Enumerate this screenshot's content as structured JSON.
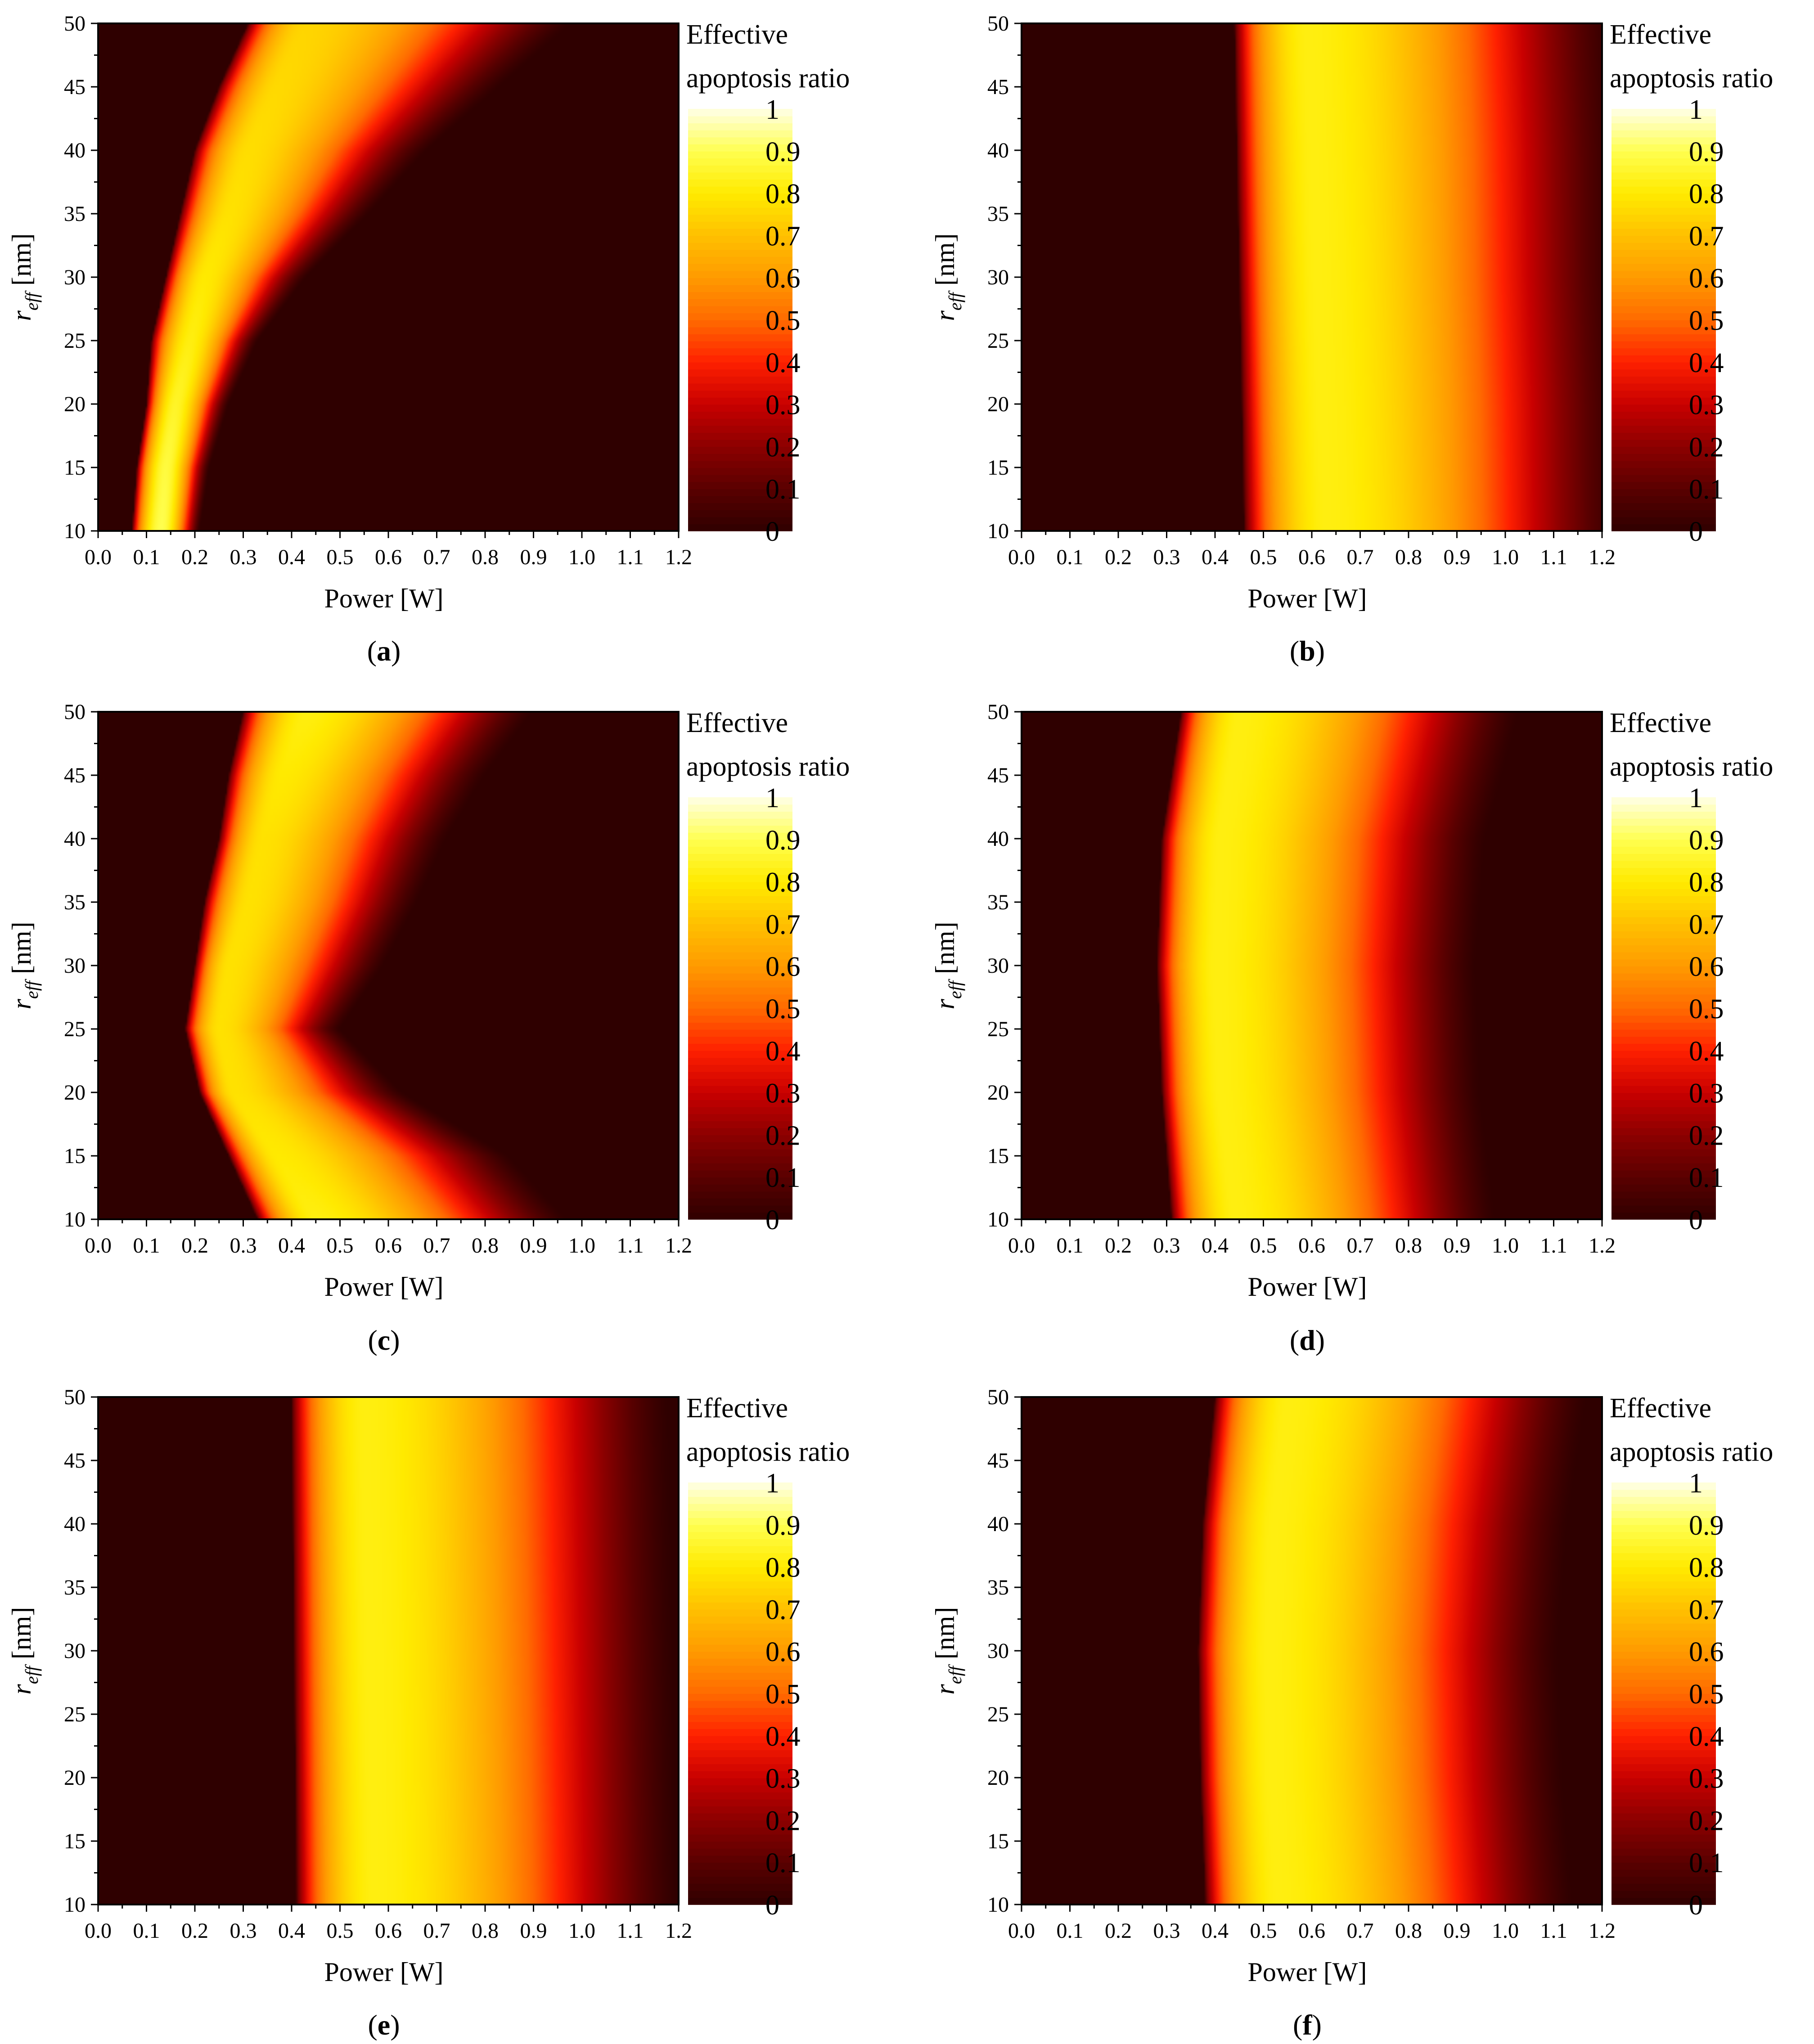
{
  "figure": {
    "colorbar_title_lines": [
      "Effective",
      "apoptosis ratio"
    ],
    "colorbar_ticks": [
      "0",
      "0.1",
      "0.2",
      "0.3",
      "0.4",
      "0.5",
      "0.6",
      "0.7",
      "0.8",
      "0.9",
      "1"
    ],
    "x_axis_title": "Power [W]",
    "y_axis_title_main": "r",
    "y_axis_title_sub": "eff",
    "y_axis_title_unit": " [nm]",
    "colormap": [
      "#2f0000",
      "#5a0000",
      "#8c0000",
      "#c80000",
      "#ff2000",
      "#ff6a00",
      "#ff9a00",
      "#ffc000",
      "#ffea00",
      "#ffff50",
      "#ffffe6"
    ]
  },
  "chart_data": [
    {
      "type": "heatmap",
      "panel": "a",
      "xlabel": "Power [W]",
      "ylabel": "r_eff [nm]",
      "colorbar_label": "Effective apoptosis ratio",
      "xlim": [
        0,
        1.2
      ],
      "ylim": [
        10,
        50
      ],
      "x_ticks": [
        "0.0",
        "0.1",
        "0.2",
        "0.3",
        "0.4",
        "0.5",
        "0.6",
        "0.7",
        "0.8",
        "0.9",
        "1.0",
        "1.1",
        "1.2"
      ],
      "y_ticks": [
        "10",
        "15",
        "20",
        "25",
        "30",
        "35",
        "40",
        "45",
        "50"
      ],
      "clim": [
        0,
        1
      ],
      "ridge": [
        {
          "r": 10,
          "center": 0.13,
          "left_edge": 0.07,
          "right_edge": 0.21,
          "peak": 0.9
        },
        {
          "r": 15,
          "center": 0.14,
          "left_edge": 0.08,
          "right_edge": 0.23,
          "peak": 0.88
        },
        {
          "r": 20,
          "center": 0.16,
          "left_edge": 0.1,
          "right_edge": 0.27,
          "peak": 0.85
        },
        {
          "r": 25,
          "center": 0.19,
          "left_edge": 0.11,
          "right_edge": 0.33,
          "peak": 0.82
        },
        {
          "r": 30,
          "center": 0.22,
          "left_edge": 0.14,
          "right_edge": 0.43,
          "peak": 0.8
        },
        {
          "r": 35,
          "center": 0.27,
          "left_edge": 0.17,
          "right_edge": 0.56,
          "peak": 0.78
        },
        {
          "r": 40,
          "center": 0.31,
          "left_edge": 0.2,
          "right_edge": 0.68,
          "peak": 0.77
        },
        {
          "r": 45,
          "center": 0.37,
          "left_edge": 0.25,
          "right_edge": 0.83,
          "peak": 0.76
        },
        {
          "r": 50,
          "center": 0.43,
          "left_edge": 0.31,
          "right_edge": 0.98,
          "peak": 0.75
        }
      ]
    },
    {
      "type": "heatmap",
      "panel": "b",
      "xlabel": "Power [W]",
      "ylabel": "r_eff [nm]",
      "colorbar_label": "Effective apoptosis ratio",
      "xlim": [
        0,
        1.2
      ],
      "ylim": [
        10,
        50
      ],
      "x_ticks": [
        "0.0",
        "0.1",
        "0.2",
        "0.3",
        "0.4",
        "0.5",
        "0.6",
        "0.7",
        "0.8",
        "0.9",
        "1.0",
        "1.1",
        "1.2"
      ],
      "y_ticks": [
        "10",
        "15",
        "20",
        "25",
        "30",
        "35",
        "40",
        "45",
        "50"
      ],
      "clim": [
        0,
        1
      ],
      "ridge": [
        {
          "r": 10,
          "center": 0.63,
          "left_edge": 0.46,
          "right_edge": 1.25,
          "peak": 0.82
        },
        {
          "r": 20,
          "center": 0.62,
          "left_edge": 0.455,
          "right_edge": 1.25,
          "peak": 0.82
        },
        {
          "r": 30,
          "center": 0.61,
          "left_edge": 0.45,
          "right_edge": 1.24,
          "peak": 0.82
        },
        {
          "r": 40,
          "center": 0.6,
          "left_edge": 0.445,
          "right_edge": 1.24,
          "peak": 0.82
        },
        {
          "r": 50,
          "center": 0.59,
          "left_edge": 0.44,
          "right_edge": 1.23,
          "peak": 0.82
        }
      ]
    },
    {
      "type": "heatmap",
      "panel": "c",
      "xlabel": "Power [W]",
      "ylabel": "r_eff [nm]",
      "colorbar_label": "Effective apoptosis ratio",
      "xlim": [
        0,
        1.2
      ],
      "ylim": [
        10,
        50
      ],
      "x_ticks": [
        "0.0",
        "0.1",
        "0.2",
        "0.3",
        "0.4",
        "0.5",
        "0.6",
        "0.7",
        "0.8",
        "0.9",
        "1.0",
        "1.1",
        "1.2"
      ],
      "y_ticks": [
        "10",
        "15",
        "20",
        "25",
        "30",
        "35",
        "40",
        "45",
        "50"
      ],
      "clim": [
        0,
        1
      ],
      "ridge": [
        {
          "r": 10,
          "center": 0.45,
          "left_edge": 0.33,
          "right_edge": 0.97,
          "peak": 0.82
        },
        {
          "r": 15,
          "center": 0.37,
          "left_edge": 0.27,
          "right_edge": 0.85,
          "peak": 0.8
        },
        {
          "r": 20,
          "center": 0.28,
          "left_edge": 0.21,
          "right_edge": 0.63,
          "peak": 0.78
        },
        {
          "r": 25,
          "center": 0.25,
          "left_edge": 0.18,
          "right_edge": 0.5,
          "peak": 0.78
        },
        {
          "r": 30,
          "center": 0.27,
          "left_edge": 0.2,
          "right_edge": 0.59,
          "peak": 0.78
        },
        {
          "r": 35,
          "center": 0.31,
          "left_edge": 0.22,
          "right_edge": 0.66,
          "peak": 0.78
        },
        {
          "r": 40,
          "center": 0.34,
          "left_edge": 0.25,
          "right_edge": 0.72,
          "peak": 0.78
        },
        {
          "r": 45,
          "center": 0.38,
          "left_edge": 0.27,
          "right_edge": 0.8,
          "peak": 0.8
        },
        {
          "r": 50,
          "center": 0.43,
          "left_edge": 0.3,
          "right_edge": 0.9,
          "peak": 0.82
        }
      ]
    },
    {
      "type": "heatmap",
      "panel": "d",
      "xlabel": "Power [W]",
      "ylabel": "r_eff [nm]",
      "colorbar_label": "Effective apoptosis ratio",
      "xlim": [
        0,
        1.2
      ],
      "ylim": [
        10,
        50
      ],
      "x_ticks": [
        "0.0",
        "0.1",
        "0.2",
        "0.3",
        "0.4",
        "0.5",
        "0.6",
        "0.7",
        "0.8",
        "0.9",
        "1.0",
        "1.1",
        "1.2"
      ],
      "y_ticks": [
        "10",
        "15",
        "20",
        "25",
        "30",
        "35",
        "40",
        "45",
        "50"
      ],
      "clim": [
        0,
        1
      ],
      "ridge": [
        {
          "r": 10,
          "center": 0.44,
          "left_edge": 0.31,
          "right_edge": 0.98,
          "peak": 0.82
        },
        {
          "r": 20,
          "center": 0.41,
          "left_edge": 0.29,
          "right_edge": 0.95,
          "peak": 0.82
        },
        {
          "r": 30,
          "center": 0.4,
          "left_edge": 0.28,
          "right_edge": 0.94,
          "peak": 0.82
        },
        {
          "r": 40,
          "center": 0.41,
          "left_edge": 0.29,
          "right_edge": 0.96,
          "peak": 0.82
        },
        {
          "r": 50,
          "center": 0.45,
          "left_edge": 0.33,
          "right_edge": 1.03,
          "peak": 0.82
        }
      ]
    },
    {
      "type": "heatmap",
      "panel": "e",
      "xlabel": "Power [W]",
      "ylabel": "r_eff [nm]",
      "colorbar_label": "Effective apoptosis ratio",
      "xlim": [
        0,
        1.2
      ],
      "ylim": [
        10,
        50
      ],
      "x_ticks": [
        "0.0",
        "0.1",
        "0.2",
        "0.3",
        "0.4",
        "0.5",
        "0.6",
        "0.7",
        "0.8",
        "0.9",
        "1.0",
        "1.1",
        "1.2"
      ],
      "y_ticks": [
        "10",
        "15",
        "20",
        "25",
        "30",
        "35",
        "40",
        "45",
        "50"
      ],
      "clim": [
        0,
        1
      ],
      "ridge": [
        {
          "r": 10,
          "center": 0.57,
          "left_edge": 0.41,
          "right_edge": 1.2,
          "peak": 0.82
        },
        {
          "r": 30,
          "center": 0.56,
          "left_edge": 0.405,
          "right_edge": 1.19,
          "peak": 0.82
        },
        {
          "r": 50,
          "center": 0.55,
          "left_edge": 0.4,
          "right_edge": 1.18,
          "peak": 0.82
        }
      ]
    },
    {
      "type": "heatmap",
      "panel": "f",
      "xlabel": "Power [W]",
      "ylabel": "r_eff [nm]",
      "colorbar_label": "Effective apoptosis ratio",
      "xlim": [
        0,
        1.2
      ],
      "ylim": [
        10,
        50
      ],
      "x_ticks": [
        "0.0",
        "0.1",
        "0.2",
        "0.3",
        "0.4",
        "0.5",
        "0.6",
        "0.7",
        "0.8",
        "0.9",
        "1.0",
        "1.1",
        "1.2"
      ],
      "y_ticks": [
        "10",
        "15",
        "20",
        "25",
        "30",
        "35",
        "40",
        "45",
        "50"
      ],
      "clim": [
        0,
        1
      ],
      "ridge": [
        {
          "r": 10,
          "center": 0.53,
          "left_edge": 0.38,
          "right_edge": 1.14,
          "peak": 0.82
        },
        {
          "r": 20,
          "center": 0.515,
          "left_edge": 0.37,
          "right_edge": 1.12,
          "peak": 0.82
        },
        {
          "r": 30,
          "center": 0.51,
          "left_edge": 0.365,
          "right_edge": 1.11,
          "peak": 0.82
        },
        {
          "r": 40,
          "center": 0.52,
          "left_edge": 0.375,
          "right_edge": 1.13,
          "peak": 0.82
        },
        {
          "r": 50,
          "center": 0.55,
          "left_edge": 0.4,
          "right_edge": 1.17,
          "peak": 0.82
        }
      ]
    }
  ]
}
